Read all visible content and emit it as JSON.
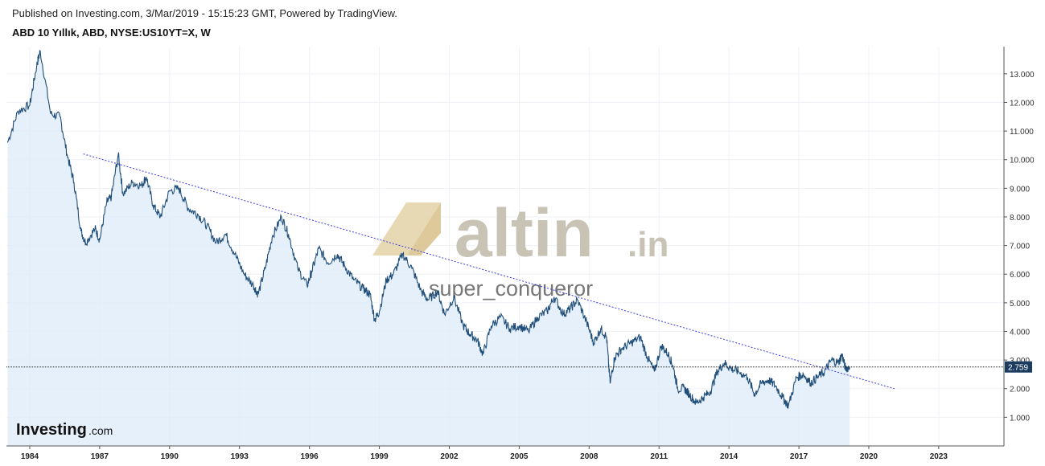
{
  "header": {
    "published": "Published on Investing.com, 3/Mar/2019 - 15:15:23 GMT, Powered by TradingView.",
    "symbol": "ABD 10 Yıllık, ABD, NYSE:US10YT=X, W"
  },
  "watermark": {
    "site": "altin",
    "site_suffix": ".in",
    "user": "super_conqueror"
  },
  "logo": {
    "brand": "Investing",
    "suffix": ".com"
  },
  "colors": {
    "line": "#1f4e79",
    "area": "#dcebf9",
    "trendline": "#3b3bd9",
    "last_value_bg": "#1b3b5f",
    "grid": "#eef1f5"
  },
  "chart_data": {
    "type": "area",
    "title": "ABD 10 Yıllık, ABD, NYSE:US10YT=X, W",
    "xlabel": "",
    "ylabel": "",
    "xlim": [
      1983.0,
      2025.8
    ],
    "ylim": [
      0.0,
      13.95
    ],
    "x_ticks": [
      1984,
      1987,
      1990,
      1993,
      1996,
      1999,
      2002,
      2005,
      2008,
      2011,
      2014,
      2017,
      2020,
      2023
    ],
    "y_ticks": [
      "1.000",
      "2.000",
      "3.000",
      "4.000",
      "5.000",
      "6.000",
      "7.000",
      "8.000",
      "9.000",
      "10.000",
      "11.000",
      "12.000",
      "13.000"
    ],
    "grid": true,
    "last_value": 2.759,
    "last_value_label": "2.759",
    "series": [
      {
        "x": [
          1983.05,
          1983.5,
          1984.0,
          1984.3,
          1984.45,
          1984.9,
          1985.3,
          1985.6,
          1985.9,
          1986.2,
          1986.4,
          1986.8,
          1987.0,
          1987.3,
          1987.5,
          1987.8,
          1988.0,
          1988.4,
          1988.8,
          1989.0,
          1989.3,
          1989.6,
          1990.0,
          1990.4,
          1990.8,
          1991.2,
          1991.6,
          1992.0,
          1992.4,
          1992.8,
          1993.2,
          1993.6,
          1993.8,
          1994.1,
          1994.4,
          1994.8,
          1995.1,
          1995.5,
          1995.9,
          1996.1,
          1996.4,
          1996.8,
          1997.2,
          1997.5,
          1997.9,
          1998.3,
          1998.6,
          1998.8,
          1999.0,
          1999.3,
          1999.6,
          2000.0,
          2000.4,
          2000.8,
          2001.1,
          2001.5,
          2001.8,
          2002.2,
          2002.6,
          2002.9,
          2003.2,
          2003.45,
          2003.8,
          2004.2,
          2004.6,
          2005.0,
          2005.4,
          2005.8,
          2006.2,
          2006.5,
          2006.9,
          2007.2,
          2007.5,
          2007.9,
          2008.2,
          2008.5,
          2008.75,
          2008.9,
          2009.1,
          2009.4,
          2009.8,
          2010.2,
          2010.5,
          2010.8,
          2011.1,
          2011.4,
          2011.6,
          2011.8,
          2012.1,
          2012.3,
          2012.6,
          2012.9,
          2013.2,
          2013.5,
          2013.8,
          2014.1,
          2014.4,
          2014.8,
          2015.1,
          2015.4,
          2015.7,
          2016.0,
          2016.3,
          2016.55,
          2016.9,
          2017.2,
          2017.5,
          2017.8,
          2018.1,
          2018.4,
          2018.7,
          2018.85,
          2019.0,
          2019.18
        ],
        "values": [
          10.6,
          11.7,
          11.9,
          13.3,
          13.8,
          11.6,
          11.5,
          10.2,
          9.2,
          7.5,
          7.1,
          7.6,
          7.2,
          8.5,
          8.7,
          10.2,
          8.8,
          9.2,
          9.1,
          9.4,
          8.4,
          8.0,
          8.9,
          9.0,
          8.3,
          8.1,
          7.7,
          7.1,
          7.4,
          6.7,
          6.0,
          5.6,
          5.3,
          6.2,
          7.3,
          8.0,
          7.4,
          6.2,
          5.6,
          6.1,
          6.9,
          6.4,
          6.7,
          6.3,
          5.8,
          5.5,
          5.3,
          4.4,
          4.7,
          5.8,
          6.0,
          6.7,
          6.2,
          5.4,
          5.1,
          5.4,
          4.6,
          5.2,
          4.2,
          3.9,
          3.7,
          3.2,
          4.2,
          4.5,
          4.1,
          4.2,
          4.0,
          4.5,
          4.7,
          5.2,
          4.6,
          4.8,
          5.1,
          4.3,
          3.6,
          4.1,
          3.8,
          2.2,
          3.1,
          3.4,
          3.6,
          3.8,
          3.1,
          2.6,
          3.5,
          3.2,
          2.8,
          2.0,
          2.0,
          1.8,
          1.5,
          1.7,
          1.9,
          2.6,
          2.9,
          2.7,
          2.6,
          2.4,
          1.8,
          2.2,
          2.3,
          2.1,
          1.7,
          1.4,
          2.4,
          2.5,
          2.2,
          2.4,
          2.6,
          3.0,
          2.9,
          3.2,
          2.7,
          2.76
        ]
      }
    ],
    "trendline": {
      "x": [
        1986.3,
        2021.1
      ],
      "y": [
        10.2,
        2.0
      ]
    }
  }
}
